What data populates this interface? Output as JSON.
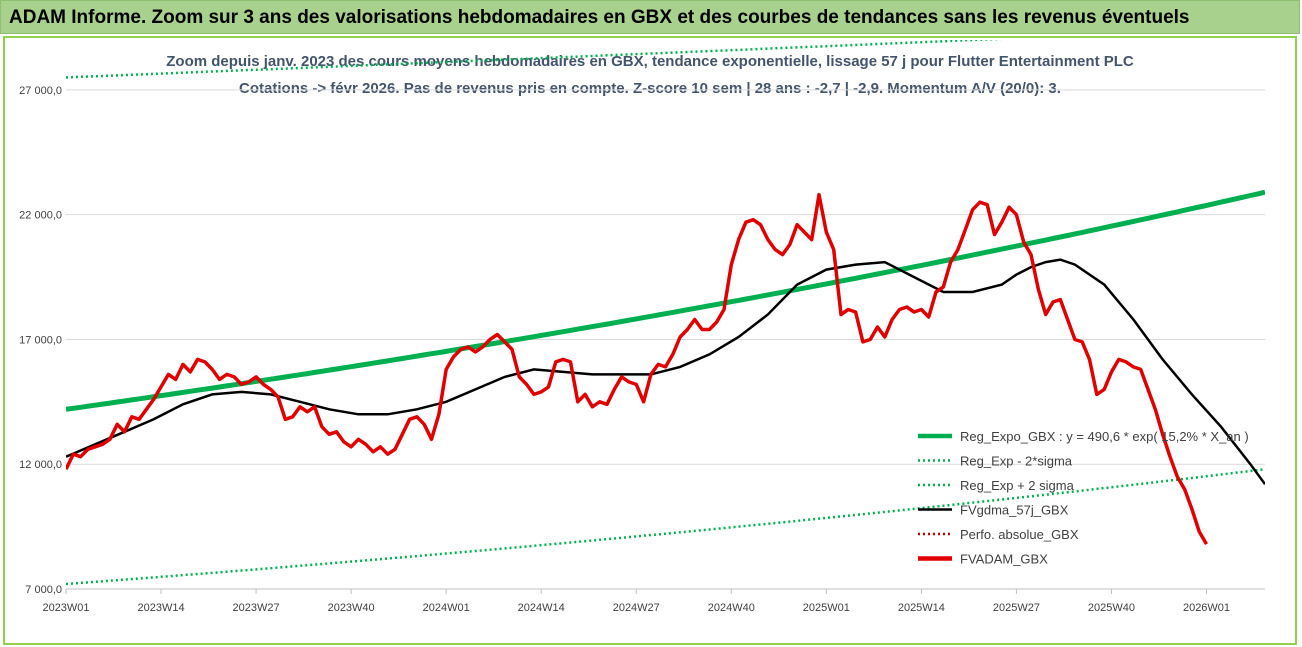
{
  "header": {
    "title": "ADAM Informe. Zoom sur 3 ans des valorisations hebdomadaires en GBX et des courbes de tendances sans les revenus éventuels"
  },
  "chart_data": {
    "type": "line",
    "subtitle_line1": "Zoom depuis janv. 2023 des cours moyens hebdomadaires en GBX, tendance exponentielle, lissage 57 j pour Flutter Entertainment PLC",
    "subtitle_line2": "Cotations -> févr 2026.  Pas de revenus pris en compte. Z-score 10 sem | 28 ans : -2,7 | -2,9. Momentum A/V (20/0): 3.",
    "ylim": [
      7000,
      29000
    ],
    "y_ticks": [
      7000,
      12000,
      17000,
      22000,
      27000
    ],
    "y_tick_labels": [
      "7 000,0",
      "12 000,0",
      "17 000,0",
      "22 000,0",
      "27 000,0"
    ],
    "x_ticks": [
      {
        "week": 0,
        "label": "2023W01"
      },
      {
        "week": 13,
        "label": "2023W14"
      },
      {
        "week": 26,
        "label": "2023W27"
      },
      {
        "week": 39,
        "label": "2023W40"
      },
      {
        "week": 52,
        "label": "2024W01"
      },
      {
        "week": 65,
        "label": "2024W14"
      },
      {
        "week": 78,
        "label": "2024W27"
      },
      {
        "week": 91,
        "label": "2024W40"
      },
      {
        "week": 104,
        "label": "2025W01"
      },
      {
        "week": 117,
        "label": "2025W14"
      },
      {
        "week": 130,
        "label": "2025W27"
      },
      {
        "week": 143,
        "label": "2025W40"
      },
      {
        "week": 156,
        "label": "2026W01"
      }
    ],
    "x_max_week": 164,
    "legend": [
      {
        "name": "Reg_Expo_GBX : y = 490,6 * exp( 15,2% * X_an )",
        "color": "#00b050",
        "style": "solid-thick"
      },
      {
        "name": "Reg_Exp - 2*sigma",
        "color": "#00b050",
        "style": "dotted"
      },
      {
        "name": "Reg_Exp + 2 sigma",
        "color": "#00b050",
        "style": "dotted"
      },
      {
        "name": "FVgdma_57j_GBX",
        "color": "#000000",
        "style": "solid"
      },
      {
        "name": "Perfo. absolue_GBX",
        "color": "#c00000",
        "style": "dotted"
      },
      {
        "name": "FVADAM_GBX",
        "color": "#e00000",
        "style": "solid-thick"
      }
    ],
    "series": {
      "reg_expo": {
        "start": 14200,
        "end": 22900
      },
      "reg_minus_2sigma": {
        "start": 7200,
        "end": 11800
      },
      "reg_plus_2sigma": {
        "start": 27500,
        "end": 29500
      },
      "fvgdma_57j": [
        [
          0,
          12300
        ],
        [
          4,
          12800
        ],
        [
          8,
          13300
        ],
        [
          12,
          13800
        ],
        [
          16,
          14400
        ],
        [
          20,
          14800
        ],
        [
          24,
          14900
        ],
        [
          28,
          14800
        ],
        [
          32,
          14500
        ],
        [
          36,
          14200
        ],
        [
          40,
          14000
        ],
        [
          44,
          14000
        ],
        [
          48,
          14200
        ],
        [
          52,
          14500
        ],
        [
          56,
          15000
        ],
        [
          60,
          15500
        ],
        [
          64,
          15800
        ],
        [
          68,
          15700
        ],
        [
          72,
          15600
        ],
        [
          76,
          15600
        ],
        [
          80,
          15600
        ],
        [
          84,
          15900
        ],
        [
          88,
          16400
        ],
        [
          92,
          17100
        ],
        [
          96,
          18000
        ],
        [
          100,
          19200
        ],
        [
          104,
          19800
        ],
        [
          108,
          20000
        ],
        [
          112,
          20100
        ],
        [
          116,
          19500
        ],
        [
          120,
          18900
        ],
        [
          124,
          18900
        ],
        [
          128,
          19200
        ],
        [
          130,
          19600
        ],
        [
          132,
          19900
        ],
        [
          134,
          20100
        ],
        [
          136,
          20200
        ],
        [
          138,
          20000
        ],
        [
          142,
          19200
        ],
        [
          146,
          17800
        ],
        [
          150,
          16200
        ],
        [
          154,
          14800
        ],
        [
          158,
          13500
        ],
        [
          162,
          12000
        ],
        [
          164,
          11200
        ]
      ],
      "fvadam": [
        [
          0,
          11800
        ],
        [
          1,
          12400
        ],
        [
          2,
          12300
        ],
        [
          3,
          12600
        ],
        [
          4,
          12700
        ],
        [
          5,
          12800
        ],
        [
          6,
          13000
        ],
        [
          7,
          13600
        ],
        [
          8,
          13300
        ],
        [
          9,
          13900
        ],
        [
          10,
          13800
        ],
        [
          11,
          14200
        ],
        [
          12,
          14600
        ],
        [
          13,
          15100
        ],
        [
          14,
          15600
        ],
        [
          15,
          15400
        ],
        [
          16,
          16000
        ],
        [
          17,
          15700
        ],
        [
          18,
          16200
        ],
        [
          19,
          16100
        ],
        [
          20,
          15800
        ],
        [
          21,
          15400
        ],
        [
          22,
          15600
        ],
        [
          23,
          15500
        ],
        [
          24,
          15200
        ],
        [
          25,
          15300
        ],
        [
          26,
          15500
        ],
        [
          27,
          15200
        ],
        [
          28,
          15000
        ],
        [
          29,
          14700
        ],
        [
          30,
          13800
        ],
        [
          31,
          13900
        ],
        [
          32,
          14300
        ],
        [
          33,
          14100
        ],
        [
          34,
          14300
        ],
        [
          35,
          13500
        ],
        [
          36,
          13200
        ],
        [
          37,
          13300
        ],
        [
          38,
          12900
        ],
        [
          39,
          12700
        ],
        [
          40,
          13000
        ],
        [
          41,
          12800
        ],
        [
          42,
          12500
        ],
        [
          43,
          12700
        ],
        [
          44,
          12400
        ],
        [
          45,
          12600
        ],
        [
          46,
          13200
        ],
        [
          47,
          13800
        ],
        [
          48,
          13900
        ],
        [
          49,
          13600
        ],
        [
          50,
          13000
        ],
        [
          51,
          14000
        ],
        [
          52,
          15800
        ],
        [
          53,
          16300
        ],
        [
          54,
          16600
        ],
        [
          55,
          16700
        ],
        [
          56,
          16500
        ],
        [
          57,
          16700
        ],
        [
          58,
          17000
        ],
        [
          59,
          17200
        ],
        [
          60,
          16900
        ],
        [
          61,
          16600
        ],
        [
          62,
          15500
        ],
        [
          63,
          15200
        ],
        [
          64,
          14800
        ],
        [
          65,
          14900
        ],
        [
          66,
          15100
        ],
        [
          67,
          16100
        ],
        [
          68,
          16200
        ],
        [
          69,
          16100
        ],
        [
          70,
          14500
        ],
        [
          71,
          14800
        ],
        [
          72,
          14300
        ],
        [
          73,
          14500
        ],
        [
          74,
          14400
        ],
        [
          75,
          15000
        ],
        [
          76,
          15500
        ],
        [
          77,
          15300
        ],
        [
          78,
          15200
        ],
        [
          79,
          14500
        ],
        [
          80,
          15600
        ],
        [
          81,
          16000
        ],
        [
          82,
          15900
        ],
        [
          83,
          16400
        ],
        [
          84,
          17100
        ],
        [
          85,
          17400
        ],
        [
          86,
          17800
        ],
        [
          87,
          17400
        ],
        [
          88,
          17400
        ],
        [
          89,
          17700
        ],
        [
          90,
          18200
        ],
        [
          91,
          20000
        ],
        [
          92,
          21000
        ],
        [
          93,
          21700
        ],
        [
          94,
          21800
        ],
        [
          95,
          21600
        ],
        [
          96,
          21000
        ],
        [
          97,
          20600
        ],
        [
          98,
          20400
        ],
        [
          99,
          20800
        ],
        [
          100,
          21600
        ],
        [
          101,
          21300
        ],
        [
          102,
          21000
        ],
        [
          103,
          22800
        ],
        [
          104,
          21300
        ],
        [
          105,
          20600
        ],
        [
          106,
          18000
        ],
        [
          107,
          18200
        ],
        [
          108,
          18100
        ],
        [
          109,
          16900
        ],
        [
          110,
          17000
        ],
        [
          111,
          17500
        ],
        [
          112,
          17100
        ],
        [
          113,
          17800
        ],
        [
          114,
          18200
        ],
        [
          115,
          18300
        ],
        [
          116,
          18100
        ],
        [
          117,
          18200
        ],
        [
          118,
          17900
        ],
        [
          119,
          18900
        ],
        [
          120,
          19100
        ],
        [
          121,
          20100
        ],
        [
          122,
          20600
        ],
        [
          123,
          21400
        ],
        [
          124,
          22200
        ],
        [
          125,
          22500
        ],
        [
          126,
          22400
        ],
        [
          127,
          21200
        ],
        [
          128,
          21700
        ],
        [
          129,
          22300
        ],
        [
          130,
          22000
        ],
        [
          131,
          20900
        ],
        [
          132,
          20400
        ],
        [
          133,
          19000
        ],
        [
          134,
          18000
        ],
        [
          135,
          18500
        ],
        [
          136,
          18600
        ],
        [
          137,
          17800
        ],
        [
          138,
          17000
        ],
        [
          139,
          16900
        ],
        [
          140,
          16200
        ],
        [
          141,
          14800
        ],
        [
          142,
          15000
        ],
        [
          143,
          15700
        ],
        [
          144,
          16200
        ],
        [
          145,
          16100
        ],
        [
          146,
          15900
        ],
        [
          147,
          15800
        ],
        [
          148,
          15000
        ],
        [
          149,
          14200
        ],
        [
          150,
          13200
        ],
        [
          151,
          12300
        ],
        [
          152,
          11500
        ],
        [
          153,
          11000
        ],
        [
          154,
          10200
        ],
        [
          155,
          9300
        ],
        [
          156,
          8800
        ]
      ]
    }
  },
  "colors": {
    "banner": "#a9d18e",
    "frame": "#92d050",
    "reg_green": "#00b050",
    "fvadam_red": "#e00000",
    "fvgdma_black": "#000000"
  }
}
